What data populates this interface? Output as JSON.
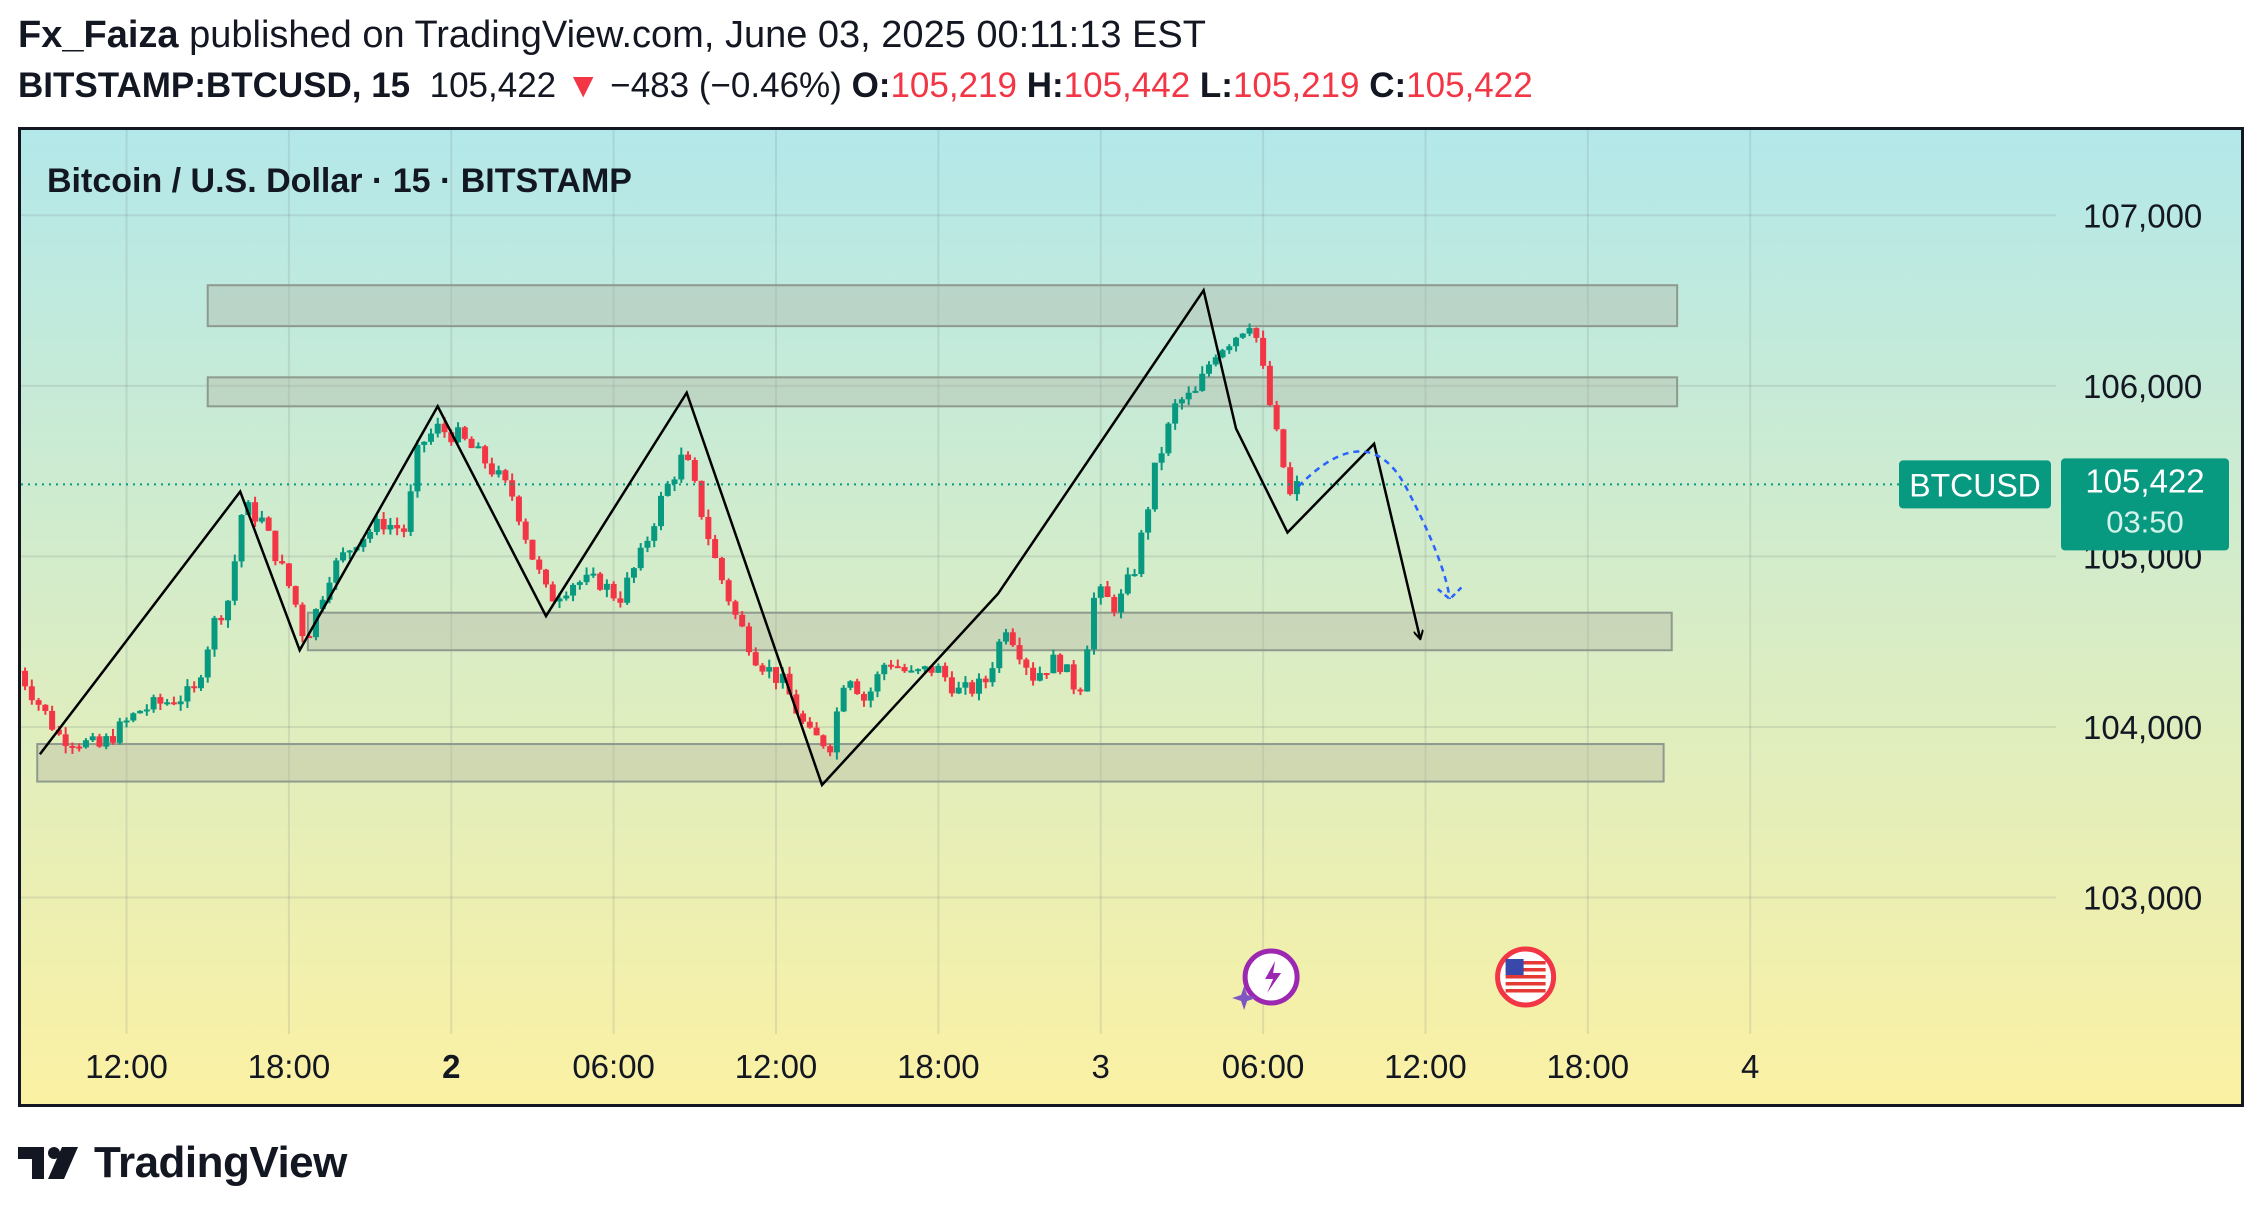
{
  "header": {
    "author": "Fx_Faiza",
    "published_text": "published on TradingView.com, June 03, 2025 00:11:13 EST",
    "symbol": "BITSTAMP:BTCUSD, 15",
    "last": "105,422",
    "change_icon": "down-triangle-icon",
    "change": "−483 (−0.46%)",
    "o_label": "O:",
    "o_value": "105,219",
    "h_label": "H:",
    "h_value": "105,442",
    "l_label": "L:",
    "l_value": "105,219",
    "c_label": "C:",
    "c_value": "105,422"
  },
  "footer": {
    "brand": "TradingView",
    "logo_icon": "tradingview-logo-icon"
  },
  "colors": {
    "bg_top": "#b3e8ea",
    "bg_bottom": "#fbf1a3",
    "up": "#089981",
    "down": "#f23645",
    "zone_fill": "#b0b0a0",
    "zone_stroke": "#8e9a8e",
    "pattern_line": "#000000",
    "projection": "#2962ff",
    "price_label_bg": "#089981"
  },
  "chart_data": {
    "type": "candlestick",
    "title": "Bitcoin / U.S. Dollar · 15 · BITSTAMP",
    "interval": "15",
    "exchange": "BITSTAMP",
    "y_axis": {
      "ticks": [
        103000,
        104000,
        105000,
        106000,
        107000
      ],
      "tick_labels": [
        "103,000",
        "104,000",
        "105,000",
        "106,000",
        "107,000"
      ],
      "range": [
        102200,
        107500
      ]
    },
    "x_axis": {
      "tick_labels": [
        "12:00",
        "18:00",
        "2",
        "06:00",
        "12:00",
        "18:00",
        "3",
        "06:00",
        "12:00",
        "18:00",
        "4"
      ],
      "bold_labels": [
        "2"
      ],
      "tick_hours": [
        12,
        18,
        24,
        30,
        36,
        42,
        48,
        54,
        60,
        66,
        72
      ],
      "range_hours": [
        8.1,
        83.3
      ],
      "note": "hours since June 01 00:00"
    },
    "last_price": {
      "label": "BTCUSD",
      "value": "105,422",
      "countdown": "03:50",
      "price": 105422
    },
    "zones": [
      {
        "from_hour": 15.0,
        "to_hour": 69.3,
        "low": 106350,
        "high": 106590
      },
      {
        "from_hour": 15.0,
        "to_hour": 69.3,
        "low": 105880,
        "high": 106050
      },
      {
        "from_hour": 18.7,
        "to_hour": 69.1,
        "low": 104450,
        "high": 104670
      },
      {
        "from_hour": 8.7,
        "to_hour": 68.8,
        "low": 103680,
        "high": 103900
      }
    ],
    "pattern": [
      [
        8.8,
        103840
      ],
      [
        16.2,
        105380
      ],
      [
        18.4,
        104450
      ],
      [
        23.5,
        105880
      ],
      [
        27.5,
        104650
      ],
      [
        32.7,
        105960
      ],
      [
        37.7,
        103660
      ],
      [
        44.2,
        104780
      ],
      [
        51.8,
        106560
      ],
      [
        53.0,
        105750
      ],
      [
        54.9,
        105140
      ],
      [
        58.1,
        105660
      ],
      [
        59.8,
        104520
      ]
    ],
    "pattern_arrow_tip": [
      59.8,
      104520
    ],
    "projection": [
      [
        55.3,
        105410
      ],
      [
        57.9,
        105650
      ],
      [
        59.3,
        105400
      ],
      [
        60.9,
        104750
      ]
    ],
    "anchor_candles": [
      [
        8.0,
        104330
      ],
      [
        9.5,
        103950
      ],
      [
        11.0,
        103880
      ],
      [
        12.5,
        104100
      ],
      [
        13.5,
        104150
      ],
      [
        14.5,
        104200
      ],
      [
        15.2,
        104600
      ],
      [
        15.8,
        104760
      ],
      [
        16.3,
        105300
      ],
      [
        17.0,
        105210
      ],
      [
        18.2,
        104750
      ],
      [
        18.6,
        104500
      ],
      [
        19.5,
        104900
      ],
      [
        20.5,
        105100
      ],
      [
        21.5,
        105200
      ],
      [
        22.3,
        105150
      ],
      [
        22.8,
        105650
      ],
      [
        23.5,
        105750
      ],
      [
        24.3,
        105700
      ],
      [
        25.3,
        105550
      ],
      [
        26.3,
        105350
      ],
      [
        27.0,
        105000
      ],
      [
        27.6,
        104750
      ],
      [
        28.5,
        104850
      ],
      [
        29.5,
        104850
      ],
      [
        30.2,
        104750
      ],
      [
        31.0,
        105000
      ],
      [
        31.8,
        105350
      ],
      [
        32.6,
        105600
      ],
      [
        33.0,
        105400
      ],
      [
        33.8,
        104950
      ],
      [
        34.5,
        104650
      ],
      [
        35.3,
        104400
      ],
      [
        36.3,
        104250
      ],
      [
        37.2,
        103950
      ],
      [
        38.0,
        103900
      ],
      [
        38.6,
        104350
      ],
      [
        39.3,
        104150
      ],
      [
        40.1,
        104400
      ],
      [
        41.0,
        104300
      ],
      [
        41.9,
        104350
      ],
      [
        42.8,
        104200
      ],
      [
        43.7,
        104250
      ],
      [
        44.5,
        104600
      ],
      [
        45.5,
        104300
      ],
      [
        46.4,
        104400
      ],
      [
        47.2,
        104200
      ],
      [
        47.8,
        104800
      ],
      [
        48.6,
        104700
      ],
      [
        49.3,
        104950
      ],
      [
        50.0,
        105500
      ],
      [
        50.8,
        105900
      ],
      [
        51.5,
        105950
      ],
      [
        52.2,
        106200
      ],
      [
        53.0,
        106300
      ],
      [
        53.6,
        106400
      ],
      [
        54.1,
        106000
      ],
      [
        54.5,
        105700
      ],
      [
        55.0,
        105350
      ],
      [
        55.3,
        105422
      ]
    ]
  }
}
